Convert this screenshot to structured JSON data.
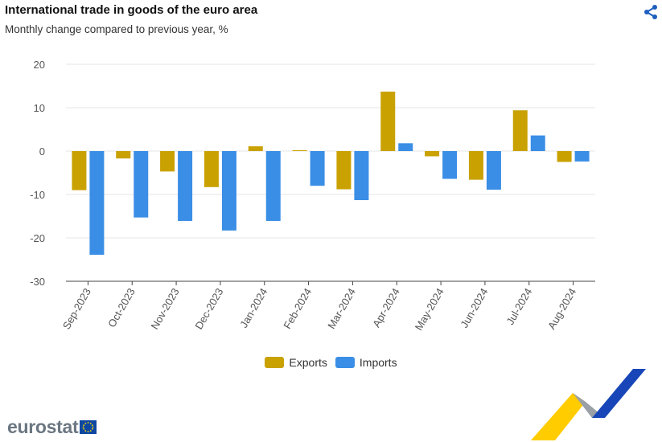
{
  "header": {
    "title": "International trade in goods of the euro area",
    "subtitle": "Monthly change compared to previous year, %"
  },
  "legend": {
    "exports": "Exports",
    "imports": "Imports"
  },
  "brand": {
    "logo_text": "eurostat"
  },
  "colors": {
    "exports": "#c9a100",
    "imports": "#3a8ee6",
    "grid": "#e6e6e6",
    "axis": "#333333"
  },
  "chart_data": {
    "type": "bar",
    "categories": [
      "Sep-2023",
      "Oct-2023",
      "Nov-2023",
      "Dec-2023",
      "Jan-2024",
      "Feb-2024",
      "Mar-2024",
      "Apr-2024",
      "May-2024",
      "Jun-2024",
      "Jul-2024",
      "Aug-2024"
    ],
    "series": [
      {
        "name": "Exports",
        "values": [
          -9.0,
          -1.7,
          -4.7,
          -8.3,
          1.1,
          0.2,
          -8.8,
          13.7,
          -1.2,
          -6.6,
          9.4,
          -2.5
        ]
      },
      {
        "name": "Imports",
        "values": [
          -23.9,
          -15.3,
          -16.1,
          -18.3,
          -16.1,
          -8.0,
          -11.3,
          1.8,
          -6.4,
          -8.9,
          3.6,
          -2.4
        ]
      }
    ],
    "yticks": [
      20,
      10,
      0,
      -10,
      -20,
      -30
    ],
    "ylim": [
      -30,
      20
    ],
    "grid": true,
    "legend_position": "bottom-center"
  }
}
